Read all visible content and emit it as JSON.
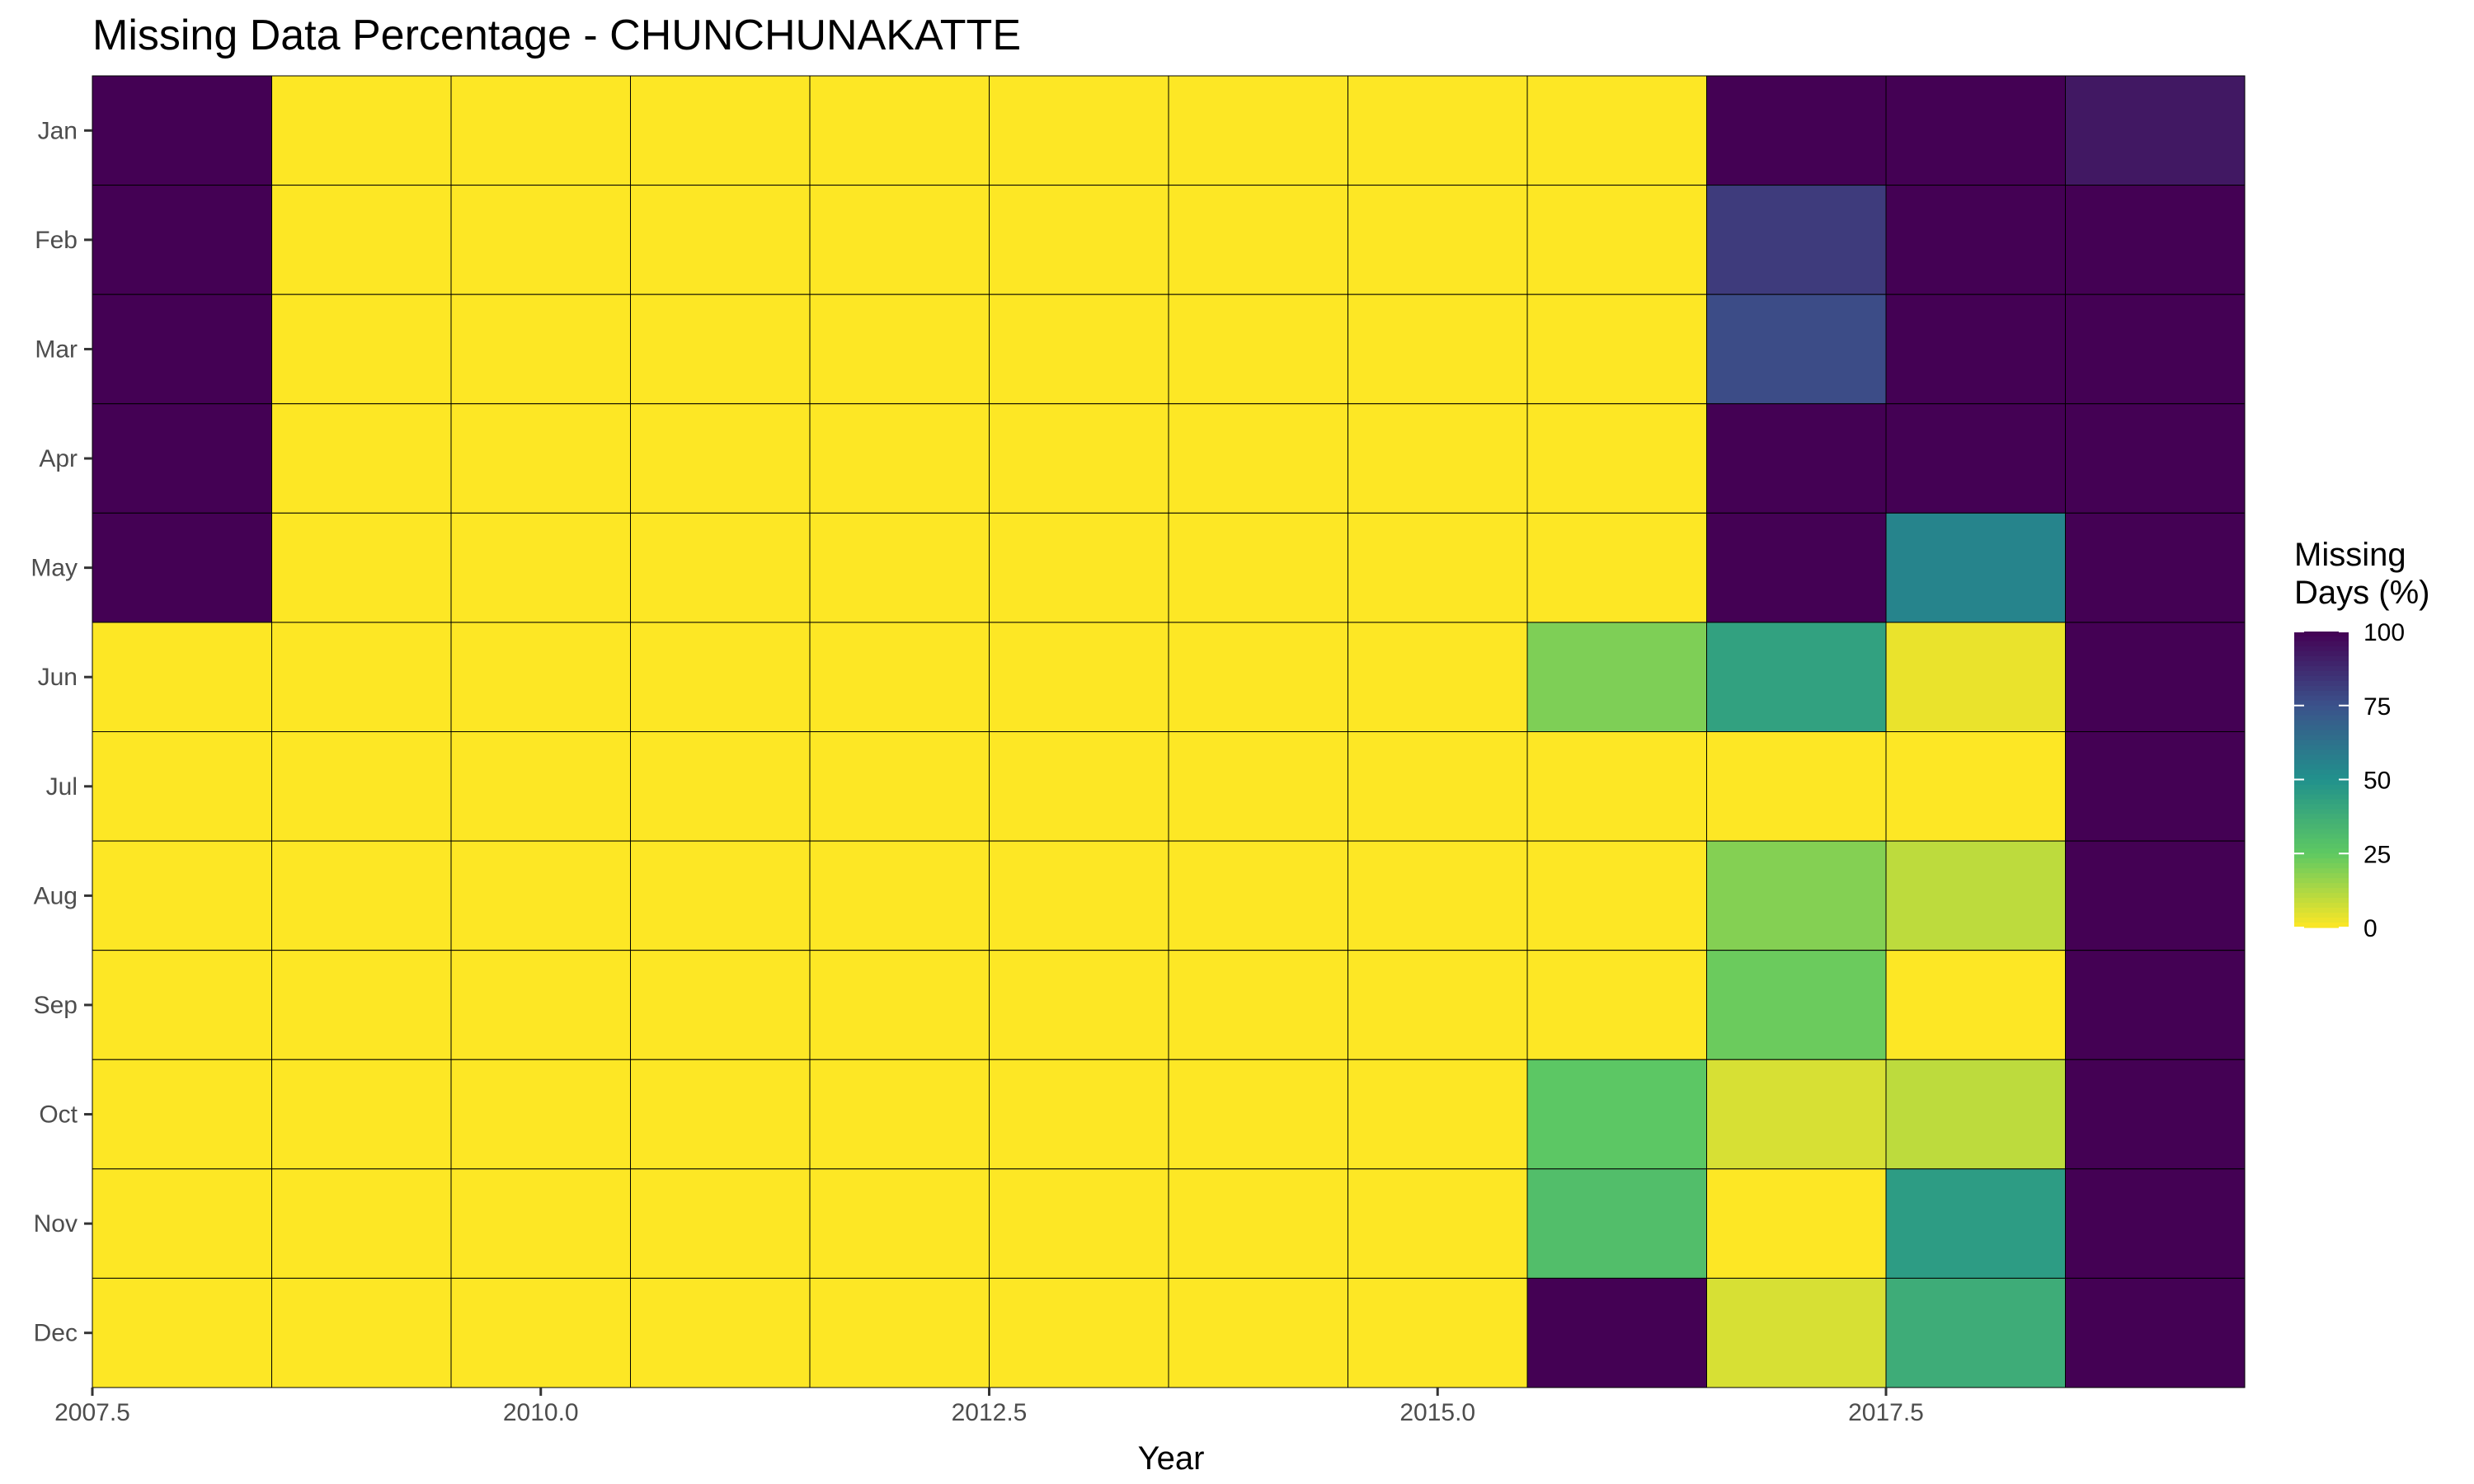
{
  "chart_data": {
    "type": "heatmap",
    "title": "Missing Data Percentage - CHUNCHUNAKATTE",
    "xlabel": "Year",
    "ylabel": "",
    "x": [
      2008,
      2009,
      2010,
      2011,
      2012,
      2013,
      2014,
      2015,
      2016,
      2017,
      2018,
      2019
    ],
    "xlim": [
      2007.5,
      2019.5
    ],
    "x_ticks": [
      "2007.5",
      "2010.0",
      "2012.5",
      "2015.0",
      "2017.5"
    ],
    "x_tick_values": [
      2007.5,
      2010.0,
      2012.5,
      2015.0,
      2017.5
    ],
    "y": [
      "Jan",
      "Feb",
      "Mar",
      "Apr",
      "May",
      "Jun",
      "Jul",
      "Aug",
      "Sep",
      "Oct",
      "Nov",
      "Dec"
    ],
    "values": [
      [
        100,
        0,
        0,
        0,
        0,
        0,
        0,
        0,
        0,
        100,
        100,
        93
      ],
      [
        100,
        0,
        0,
        0,
        0,
        0,
        0,
        0,
        0,
        82,
        100,
        100
      ],
      [
        100,
        0,
        0,
        0,
        0,
        0,
        0,
        0,
        0,
        77,
        100,
        100
      ],
      [
        100,
        0,
        0,
        0,
        0,
        0,
        0,
        0,
        0,
        100,
        100,
        100
      ],
      [
        100,
        0,
        0,
        0,
        0,
        0,
        0,
        0,
        0,
        100,
        55,
        100
      ],
      [
        0,
        0,
        0,
        0,
        0,
        0,
        0,
        0,
        20,
        43,
        3,
        100
      ],
      [
        0,
        0,
        0,
        0,
        0,
        0,
        0,
        0,
        0,
        0,
        0,
        100
      ],
      [
        0,
        0,
        0,
        0,
        0,
        0,
        0,
        0,
        0,
        19,
        10,
        100
      ],
      [
        0,
        0,
        0,
        0,
        0,
        0,
        0,
        0,
        0,
        23,
        0,
        100
      ],
      [
        0,
        0,
        0,
        0,
        0,
        0,
        0,
        0,
        26,
        6,
        10,
        100
      ],
      [
        0,
        0,
        0,
        0,
        0,
        0,
        0,
        0,
        30,
        0,
        45,
        100
      ],
      [
        0,
        0,
        0,
        0,
        0,
        0,
        0,
        0,
        100,
        6,
        38,
        100
      ]
    ],
    "legend": {
      "title_lines": [
        "Missing",
        "Days (%)"
      ],
      "ticks": [
        100,
        75,
        50,
        25,
        0
      ],
      "range": [
        0,
        100
      ],
      "placement": "right"
    },
    "colorscale": "viridis-reversed",
    "grid": false
  },
  "colors": {
    "cell_border": "#000000",
    "tick_label": "#4d4d4d",
    "axis_line": "#333333"
  }
}
